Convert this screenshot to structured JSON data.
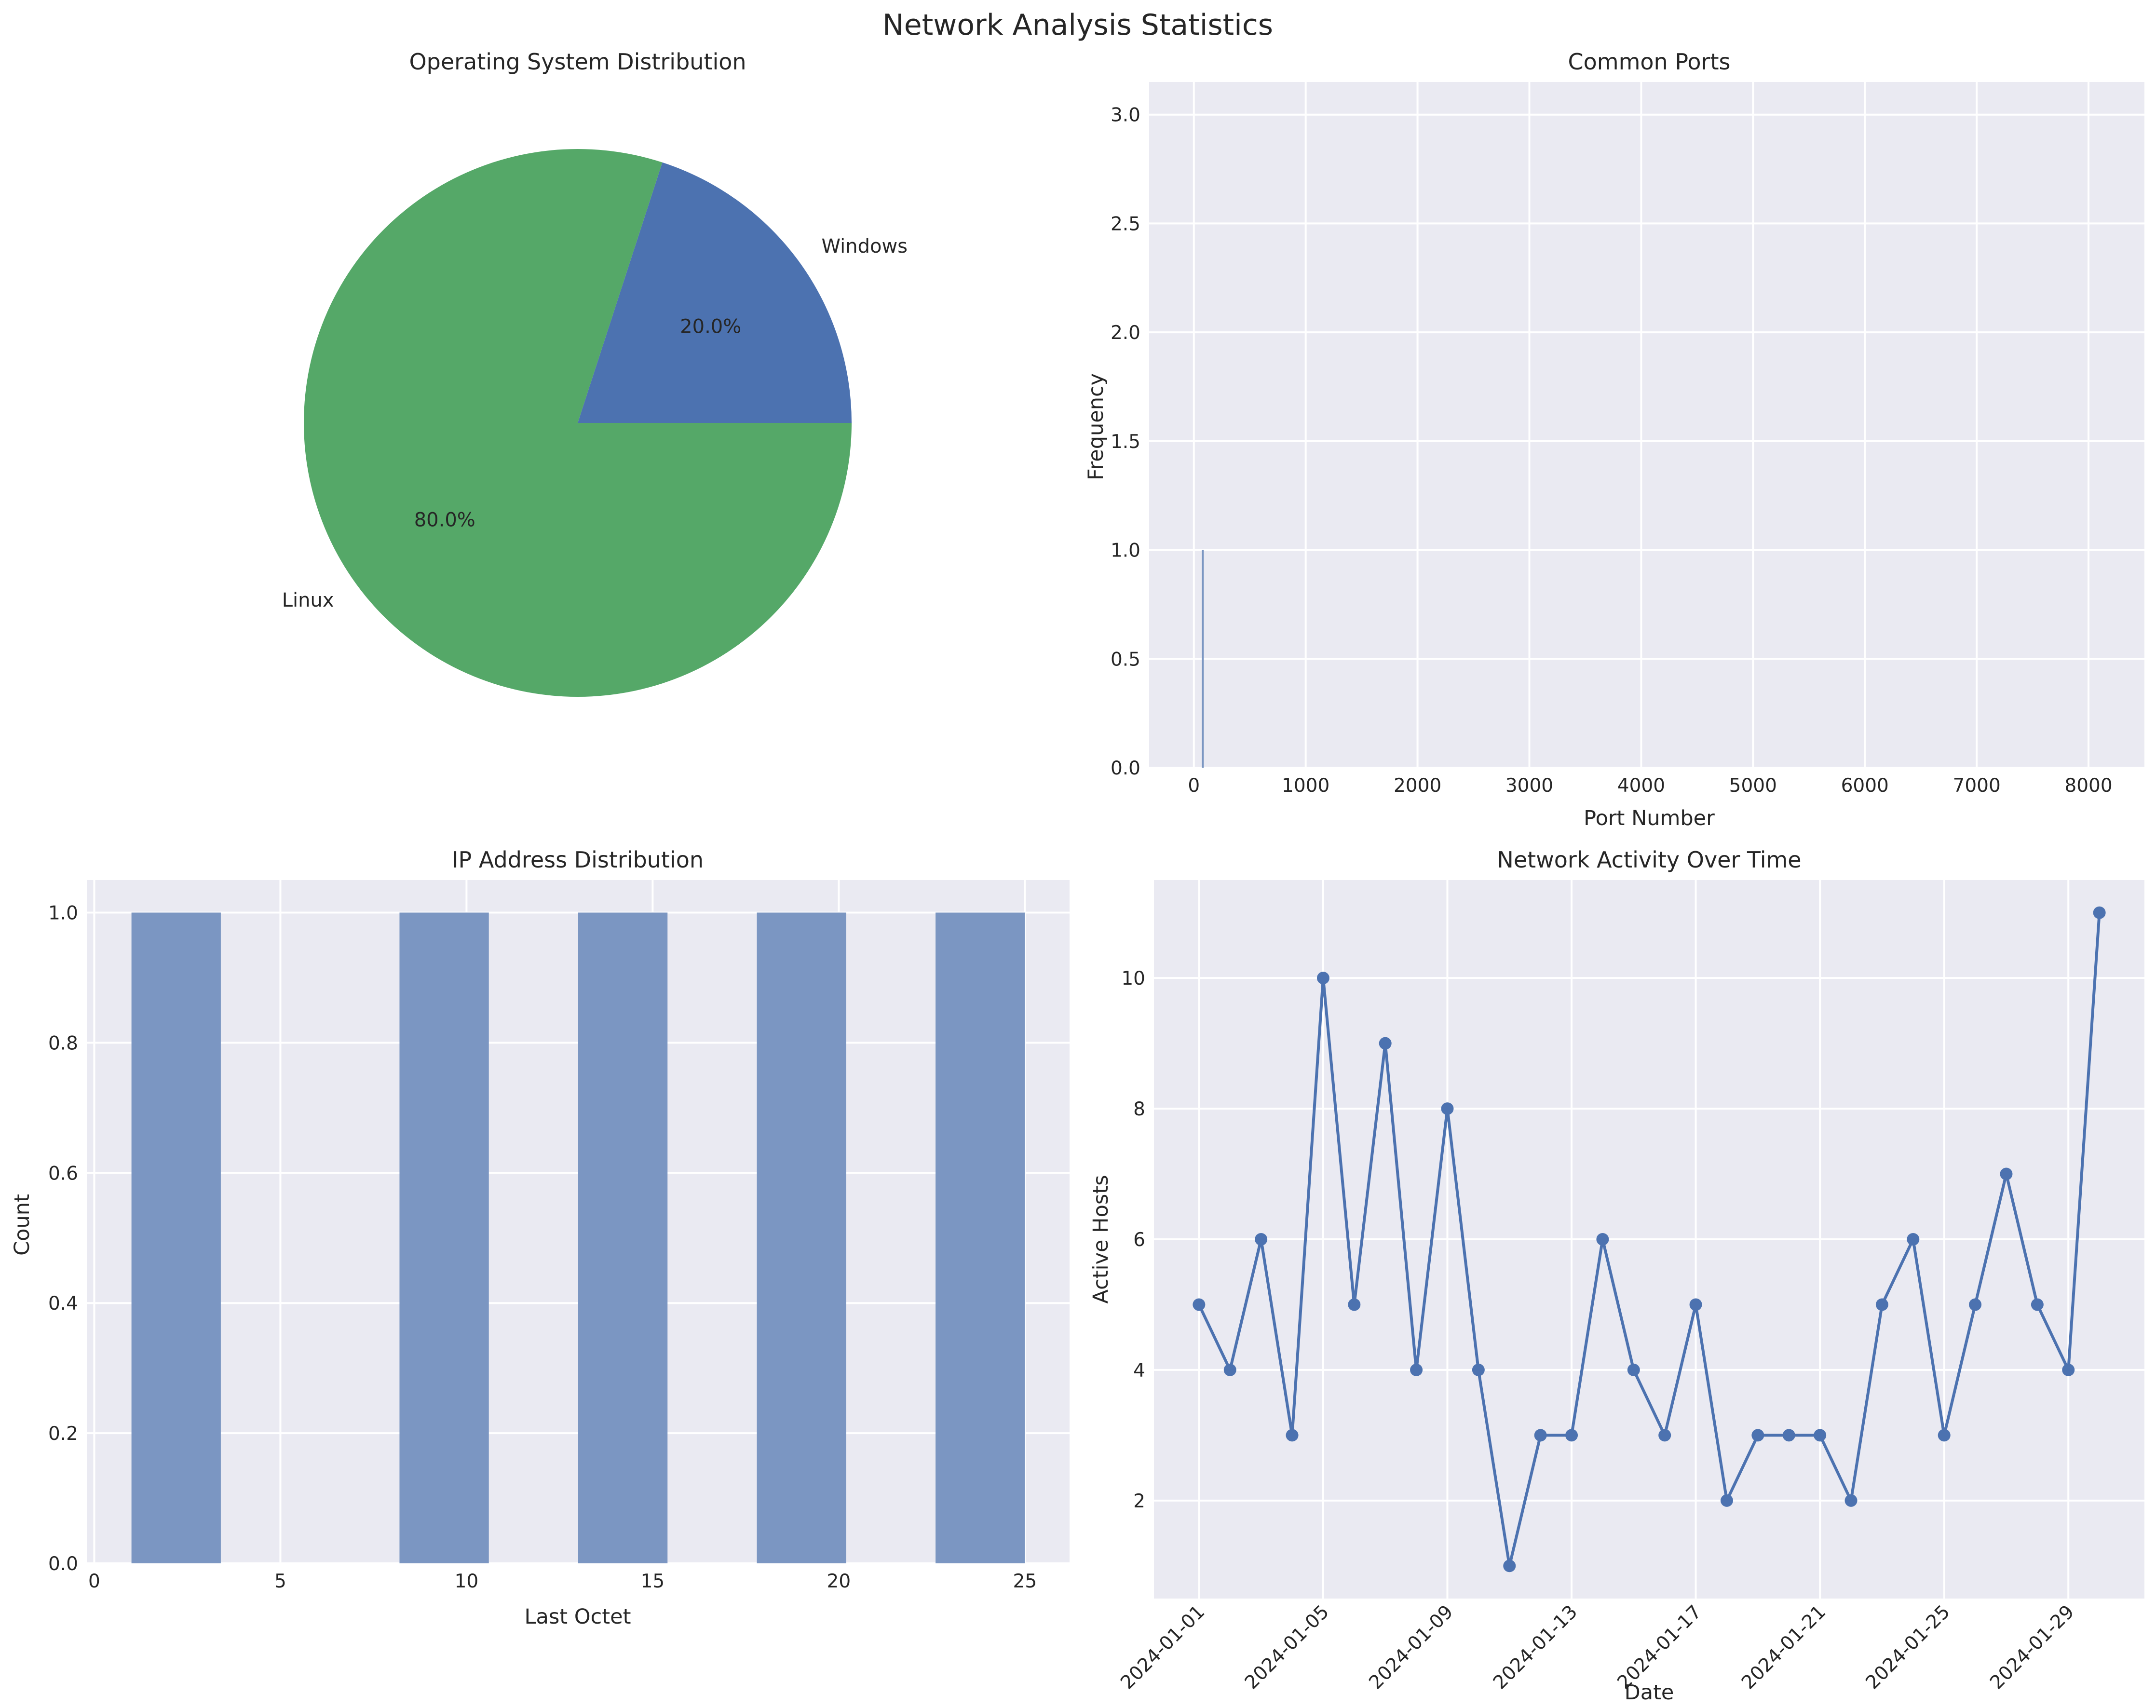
{
  "title": "Network Analysis Statistics",
  "colors": {
    "blue": "#4c72b0",
    "green": "#55a868",
    "panel_bg": "#eaeaf2",
    "bar_fill": "#7b96c2"
  },
  "chart_data": [
    {
      "type": "pie",
      "title": "Operating System Distribution",
      "slices": [
        {
          "label": "Windows",
          "value": 20.0,
          "pct_label": "20.0%",
          "color": "#4c72b0"
        },
        {
          "label": "Linux",
          "value": 80.0,
          "pct_label": "80.0%",
          "color": "#55a868"
        }
      ]
    },
    {
      "type": "bar",
      "title": "Common Ports",
      "xlabel": "Port Number",
      "ylabel": "Frequency",
      "xlim": [
        -400,
        8500
      ],
      "ylim": [
        0,
        3.15
      ],
      "xticks": [
        0,
        1000,
        2000,
        3000,
        4000,
        5000,
        6000,
        7000,
        8000
      ],
      "yticks": [
        "0.0",
        "0.5",
        "1.0",
        "1.5",
        "2.0",
        "2.5",
        "3.0"
      ],
      "bars": [
        {
          "x": 80,
          "value": 1.0
        }
      ]
    },
    {
      "type": "bar",
      "title": "IP Address Distribution",
      "xlabel": "Last Octet",
      "ylabel": "Count",
      "xlim": [
        -0.2,
        26.2
      ],
      "ylim": [
        0,
        1.05
      ],
      "xticks": [
        0,
        5,
        10,
        15,
        20,
        25
      ],
      "yticks": [
        "0.0",
        "0.2",
        "0.4",
        "0.6",
        "0.8",
        "1.0"
      ],
      "bins": [
        {
          "start": 1.0,
          "end": 3.4,
          "value": 1
        },
        {
          "start": 8.2,
          "end": 10.6,
          "value": 1
        },
        {
          "start": 13.0,
          "end": 15.4,
          "value": 1
        },
        {
          "start": 17.8,
          "end": 20.2,
          "value": 1
        },
        {
          "start": 22.6,
          "end": 25.0,
          "value": 1
        }
      ]
    },
    {
      "type": "line",
      "title": "Network Activity Over Time",
      "xlabel": "Date",
      "ylabel": "Active Hosts",
      "ylim": [
        0.5,
        11.5
      ],
      "yticks": [
        2,
        4,
        6,
        8,
        10
      ],
      "xtick_labels": [
        "2024-01-01",
        "2024-01-05",
        "2024-01-09",
        "2024-01-13",
        "2024-01-17",
        "2024-01-21",
        "2024-01-25",
        "2024-01-29"
      ],
      "dates": [
        "2024-01-01",
        "2024-01-02",
        "2024-01-03",
        "2024-01-04",
        "2024-01-05",
        "2024-01-06",
        "2024-01-07",
        "2024-01-08",
        "2024-01-09",
        "2024-01-10",
        "2024-01-11",
        "2024-01-12",
        "2024-01-13",
        "2024-01-14",
        "2024-01-15",
        "2024-01-16",
        "2024-01-17",
        "2024-01-18",
        "2024-01-19",
        "2024-01-20",
        "2024-01-21",
        "2024-01-22",
        "2024-01-23",
        "2024-01-24",
        "2024-01-25",
        "2024-01-26",
        "2024-01-27",
        "2024-01-28",
        "2024-01-29",
        "2024-01-30"
      ],
      "values": [
        5,
        4,
        6,
        3,
        10,
        5,
        9,
        4,
        8,
        4,
        1,
        3,
        3,
        6,
        4,
        3,
        5,
        2,
        3,
        3,
        3,
        2,
        5,
        6,
        3,
        5,
        7,
        5,
        4,
        11
      ]
    }
  ]
}
